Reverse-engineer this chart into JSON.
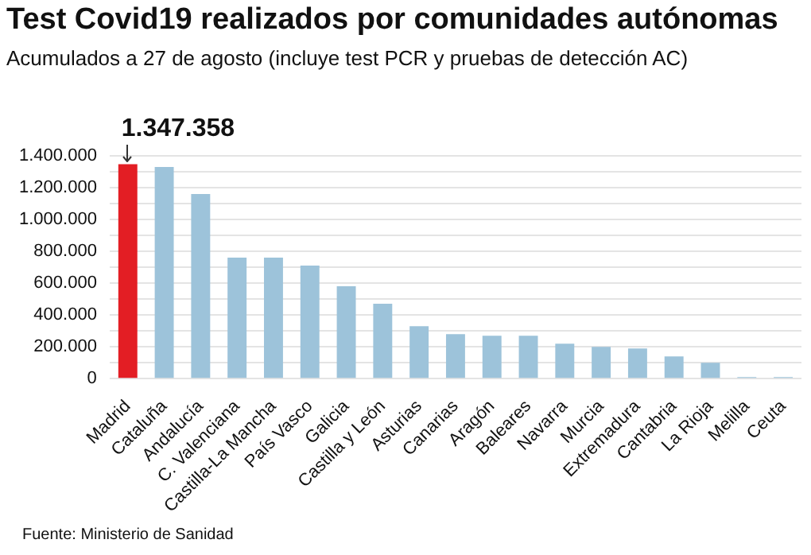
{
  "chart_data": {
    "type": "bar",
    "title": "Test Covid19 realizados por comunidades autónomas",
    "subtitle": "Acumulados a 27 de agosto (incluye test PCR y pruebas de detección AC)",
    "categories": [
      "Madrid",
      "Cataluña",
      "Andalucía",
      "C. Valenciana",
      "Castilla-La Mancha",
      "País Vasco",
      "Galicia",
      "Castilla y León",
      "Asturias",
      "Canarias",
      "Aragón",
      "Baleares",
      "Navarra",
      "Murcia",
      "Extremadura",
      "Cantabria",
      "La Rioja",
      "Melilla",
      "Ceuta"
    ],
    "values": [
      1347358,
      1330000,
      1160000,
      760000,
      760000,
      710000,
      580000,
      470000,
      330000,
      280000,
      270000,
      270000,
      220000,
      200000,
      190000,
      140000,
      100000,
      10000,
      10000
    ],
    "colors": [
      "#e31e24",
      "#9dc3da",
      "#9dc3da",
      "#9dc3da",
      "#9dc3da",
      "#9dc3da",
      "#9dc3da",
      "#9dc3da",
      "#9dc3da",
      "#9dc3da",
      "#9dc3da",
      "#9dc3da",
      "#9dc3da",
      "#9dc3da",
      "#9dc3da",
      "#9dc3da",
      "#9dc3da",
      "#9dc3da",
      "#9dc3da"
    ],
    "ylim": [
      0,
      1400000
    ],
    "yticks": [
      0,
      {
        "value": 100000,
        "label": null
      },
      {
        "value": 200000,
        "label": "200.000"
      },
      {
        "value": 300000,
        "label": null
      },
      {
        "value": 400000,
        "label": "400.000"
      },
      {
        "value": 500000,
        "label": null
      },
      {
        "value": 600000,
        "label": "600.000"
      },
      {
        "value": 700000,
        "label": null
      },
      {
        "value": 800000,
        "label": "800.000"
      },
      {
        "value": 900000,
        "label": null
      },
      {
        "value": 1000000,
        "label": "1.000.000"
      },
      {
        "value": 1100000,
        "label": null
      },
      {
        "value": 1200000,
        "label": "1.200.000"
      },
      {
        "value": 1300000,
        "label": null
      },
      {
        "value": 1400000,
        "label": "1.400.000"
      }
    ],
    "grid": "y",
    "legend": false,
    "annotations": [
      {
        "text": "1.347.358",
        "x": "Madrid",
        "y": 1347358
      },
      "Fuente: Ministerio de Sanidad"
    ]
  }
}
